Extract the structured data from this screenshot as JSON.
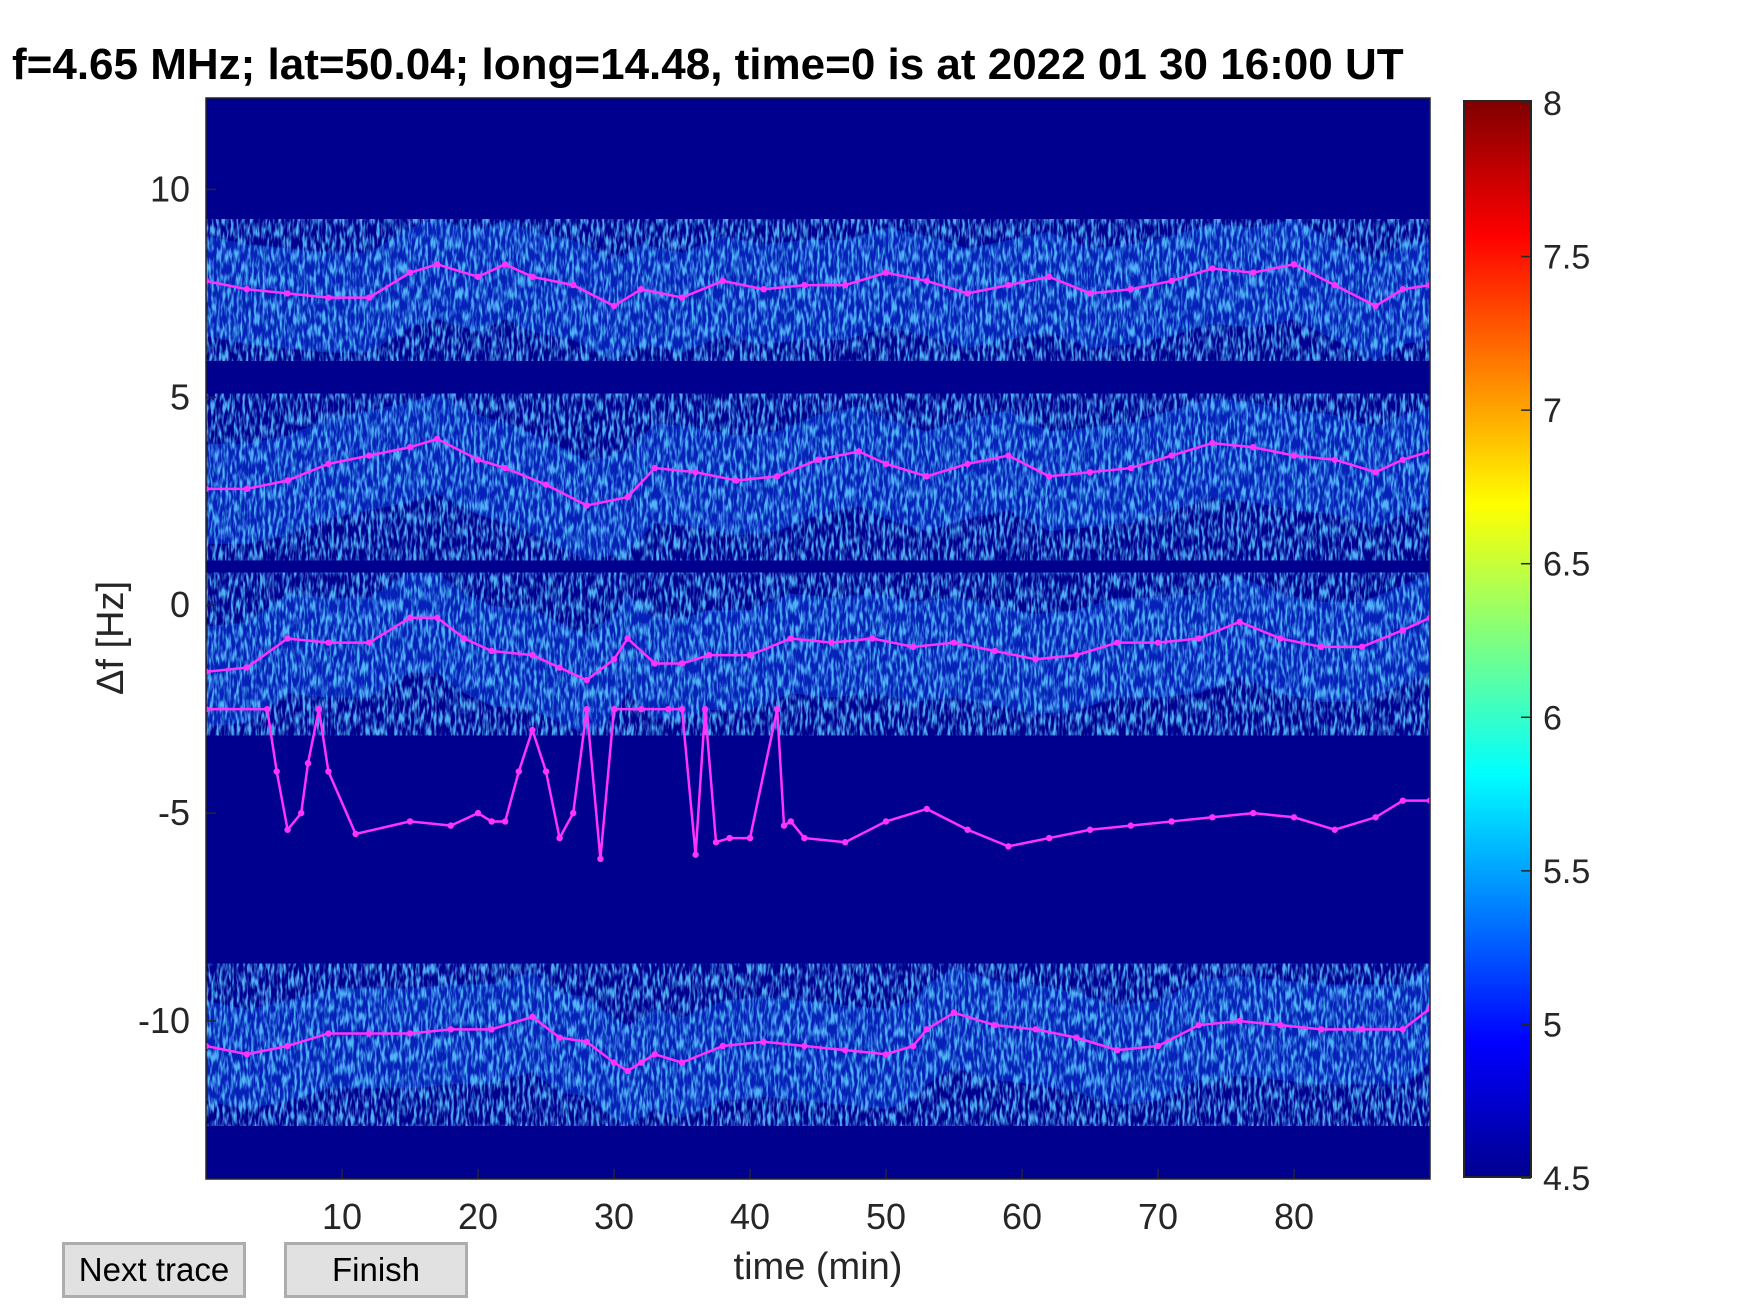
{
  "title": "f=4.65 MHz;  lat=50.04; long=14.48, time=0 is at 2022 01 30 16:00 UT",
  "buttons": {
    "next": "Next trace",
    "finish": "Finish"
  },
  "chart_data": {
    "type": "heatmap",
    "title": "f=4.65 MHz;  lat=50.04; long=14.48, time=0 is at 2022 01 30 16:00 UT",
    "xlabel": "time (min)",
    "ylabel": "Δf [Hz]",
    "xlim": [
      0,
      90
    ],
    "ylim": [
      -13.8,
      12.2
    ],
    "xticks": [
      10,
      20,
      30,
      40,
      50,
      60,
      70,
      80
    ],
    "yticks": [
      10,
      5,
      0,
      -5,
      -10
    ],
    "colorbar": {
      "min": 4.5,
      "max": 8,
      "ticks": [
        "8",
        "7.5",
        "7",
        "6.5",
        "6",
        "5.5",
        "5",
        "4.5"
      ],
      "colormap": "jet"
    },
    "background_color": "#00008f",
    "trace_color": "#ff33ff",
    "series": [
      {
        "x": [
          0,
          3,
          6,
          9,
          12,
          15,
          17,
          20,
          22,
          24,
          27,
          30,
          32,
          35,
          38,
          41,
          44,
          47,
          50,
          53,
          56,
          59,
          62,
          65,
          68,
          71,
          74,
          77,
          80,
          83,
          86,
          88,
          90
        ],
        "y": [
          7.8,
          7.6,
          7.5,
          7.4,
          7.4,
          8.0,
          8.2,
          7.9,
          8.2,
          7.9,
          7.7,
          7.2,
          7.6,
          7.4,
          7.8,
          7.6,
          7.7,
          7.7,
          8.0,
          7.8,
          7.5,
          7.7,
          7.9,
          7.5,
          7.6,
          7.8,
          8.1,
          8.0,
          8.2,
          7.7,
          7.2,
          7.6,
          7.7
        ]
      },
      {
        "x": [
          0,
          3,
          6,
          9,
          12,
          15,
          17,
          20,
          22,
          25,
          28,
          31,
          33,
          36,
          39,
          42,
          45,
          48,
          50,
          53,
          56,
          59,
          62,
          65,
          68,
          71,
          74,
          77,
          80,
          83,
          86,
          88,
          90
        ],
        "y": [
          2.8,
          2.8,
          3.0,
          3.4,
          3.6,
          3.8,
          4.0,
          3.5,
          3.3,
          2.9,
          2.4,
          2.6,
          3.3,
          3.2,
          3.0,
          3.1,
          3.5,
          3.7,
          3.4,
          3.1,
          3.4,
          3.6,
          3.1,
          3.2,
          3.3,
          3.6,
          3.9,
          3.8,
          3.6,
          3.5,
          3.2,
          3.5,
          3.7
        ]
      },
      {
        "x": [
          0,
          3,
          6,
          9,
          12,
          15,
          17,
          19,
          21,
          24,
          26,
          28,
          30,
          31,
          33,
          35,
          37,
          40,
          43,
          46,
          49,
          52,
          55,
          58,
          61,
          64,
          67,
          70,
          73,
          76,
          79,
          82,
          85,
          88,
          90
        ],
        "y": [
          -1.6,
          -1.5,
          -0.8,
          -0.9,
          -0.9,
          -0.3,
          -0.3,
          -0.8,
          -1.1,
          -1.2,
          -1.5,
          -1.8,
          -1.3,
          -0.8,
          -1.4,
          -1.4,
          -1.2,
          -1.2,
          -0.8,
          -0.9,
          -0.8,
          -1.0,
          -0.9,
          -1.1,
          -1.3,
          -1.2,
          -0.9,
          -0.9,
          -0.8,
          -0.4,
          -0.8,
          -1.0,
          -1.0,
          -0.6,
          -0.3
        ]
      },
      {
        "x": [
          0,
          4.5,
          5.2,
          6,
          7,
          7.5,
          8.3,
          9,
          11,
          15,
          18,
          20,
          21,
          22,
          23,
          24,
          25,
          26,
          27,
          28,
          29,
          30,
          32,
          34,
          35,
          36,
          36.7,
          37.5,
          38.5,
          40,
          42,
          42.5,
          43,
          44,
          47,
          50,
          53,
          56,
          59,
          62,
          65,
          68,
          71,
          74,
          77,
          80,
          83,
          86,
          88,
          90
        ],
        "y": [
          -2.5,
          -2.5,
          -4.0,
          -5.4,
          -5.0,
          -3.8,
          -2.5,
          -4.0,
          -5.5,
          -5.2,
          -5.3,
          -5.0,
          -5.2,
          -5.2,
          -4.0,
          -3.0,
          -4.0,
          -5.6,
          -5.0,
          -2.5,
          -6.1,
          -2.5,
          -2.5,
          -2.5,
          -2.5,
          -6.0,
          -2.5,
          -5.7,
          -5.6,
          -5.6,
          -2.5,
          -5.3,
          -5.2,
          -5.6,
          -5.7,
          -5.2,
          -4.9,
          -5.4,
          -5.8,
          -5.6,
          -5.4,
          -5.3,
          -5.2,
          -5.1,
          -5.0,
          -5.1,
          -5.4,
          -5.1,
          -4.7,
          -4.7
        ]
      },
      {
        "x": [
          0,
          3,
          6,
          9,
          12,
          15,
          18,
          21,
          24,
          26,
          28,
          30,
          31,
          32,
          33,
          35,
          38,
          41,
          44,
          47,
          50,
          52,
          53,
          55,
          58,
          61,
          64,
          67,
          70,
          73,
          76,
          79,
          82,
          85,
          88,
          90
        ],
        "y": [
          -10.6,
          -10.8,
          -10.6,
          -10.3,
          -10.3,
          -10.3,
          -10.2,
          -10.2,
          -9.9,
          -10.4,
          -10.5,
          -11.0,
          -11.2,
          -11.0,
          -10.8,
          -11.0,
          -10.6,
          -10.5,
          -10.6,
          -10.7,
          -10.8,
          -10.6,
          -10.2,
          -9.8,
          -10.1,
          -10.2,
          -10.4,
          -10.7,
          -10.6,
          -10.1,
          -10.0,
          -10.1,
          -10.2,
          -10.2,
          -10.2,
          -9.7
        ]
      }
    ]
  }
}
